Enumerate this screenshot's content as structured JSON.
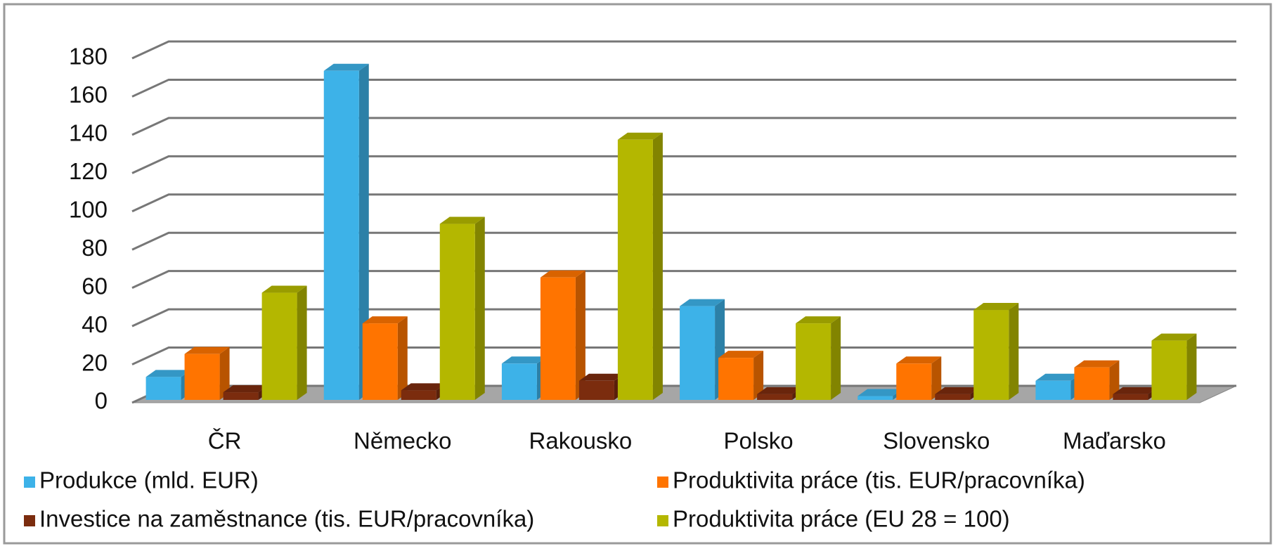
{
  "chart_data": {
    "type": "bar3d",
    "categories": [
      "ČR",
      "Německo",
      "Rakousko",
      "Polsko",
      "Slovensko",
      "Maďarsko"
    ],
    "series": [
      {
        "name": "Produkce (mld. EUR)",
        "color": "#3db2e8",
        "values": [
          12,
          172,
          19,
          49,
          2,
          10
        ]
      },
      {
        "name": "Produktivita práce (tis. EUR/pracovníka)",
        "color": "#ff7400",
        "values": [
          24,
          40,
          64,
          22,
          19,
          17
        ]
      },
      {
        "name": "Investice na zaměstnance (tis. EUR/pracovníka)",
        "color": "#7b2c0e",
        "values": [
          4,
          5,
          10,
          3,
          3,
          3
        ]
      },
      {
        "name": "Produktivita práce (EU 28 = 100)",
        "color": "#b4b700",
        "values": [
          56,
          92,
          136,
          40,
          47,
          31
        ]
      }
    ],
    "ylim": [
      0,
      180
    ],
    "yticks": [
      0,
      20,
      40,
      60,
      80,
      100,
      120,
      140,
      160,
      180
    ],
    "grid": true,
    "legend": "bottom"
  }
}
